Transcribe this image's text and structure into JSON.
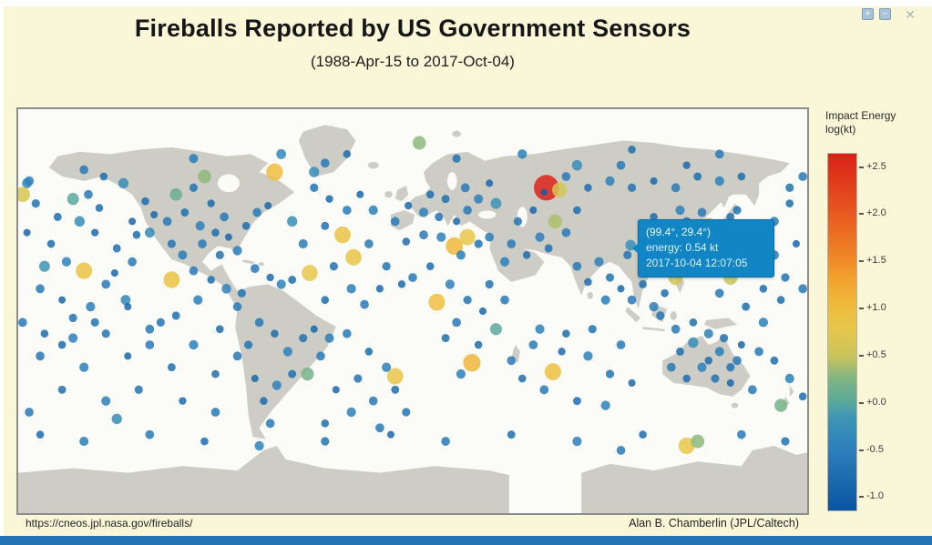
{
  "window": {
    "maximize_glyph": "+",
    "minimize_glyph": "−",
    "close_glyph": "✕"
  },
  "header": {
    "title": "Fireballs Reported by US Government Sensors",
    "subtitle": "(1988-Apr-15 to 2017-Oct-04)"
  },
  "tooltip": {
    "coords": "(99.4°, 29.4°)",
    "energy": "energy: 0.54 kt",
    "datetime": "2017-10-04 12:07:05"
  },
  "legend": {
    "title_line1": "Impact Energy",
    "title_line2": "log(kt)",
    "bar_top_value": 2.65,
    "bar_bottom_value": -1.15,
    "ticks": [
      {
        "label": "+2.5",
        "value": 2.5
      },
      {
        "label": "+2.0",
        "value": 2.0
      },
      {
        "label": "+1.5",
        "value": 1.5
      },
      {
        "label": "+1.0",
        "value": 1.0
      },
      {
        "label": "+0.5",
        "value": 0.5
      },
      {
        "label": "+0.0",
        "value": 0.0
      },
      {
        "label": "-0.5",
        "value": -0.5
      },
      {
        "label": "-1.0",
        "value": -1.0
      }
    ],
    "color_stops": [
      [
        -1.15,
        "#0a55a2"
      ],
      [
        -0.5,
        "#2c80bb"
      ],
      [
        -0.15,
        "#3e97b4"
      ],
      [
        0.0,
        "#59a89b"
      ],
      [
        0.25,
        "#7fb583"
      ],
      [
        0.5,
        "#c9c45a"
      ],
      [
        0.8,
        "#e7c64a"
      ],
      [
        1.0,
        "#eebd3e"
      ],
      [
        1.3,
        "#f2a430"
      ],
      [
        1.5,
        "#f08c27"
      ],
      [
        2.0,
        "#e85a20"
      ],
      [
        2.65,
        "#da2118"
      ]
    ]
  },
  "footer": {
    "url": "https://cneos.jpl.nasa.gov/fireballs/",
    "credit": "Alan B. Chamberlin (JPL/Caltech)"
  },
  "colors": {
    "panel": "#faf7d9",
    "bottom_bar": "#2173b3",
    "land": "#cecdc5",
    "ocean": "#fbfbf7",
    "tooltip_bg": "#1286c4"
  },
  "chart_data": {
    "type": "scatter",
    "title": "Fireballs Reported by US Government Sensors",
    "subtitle": "(1988-Apr-15 to 2017-Oct-04)",
    "projection": "equirectangular",
    "x": "longitude (deg)",
    "y": "latitude (deg)",
    "lon_range": [
      -180,
      180
    ],
    "lat_range": [
      -90,
      90
    ],
    "value_field": "log10 impact energy (kt)",
    "value_range": [
      -1.0,
      2.5
    ],
    "legend_position": "right colorbar",
    "highlighted_point": {
      "lon": 99.4,
      "lat": 29.4,
      "energy_kt": 0.54,
      "datetime": "2017-10-04 12:07:05"
    },
    "max_point": {
      "lon": 61,
      "lat": 55,
      "log_kt": 2.64,
      "note": "largest (red) fireball"
    },
    "points": [
      [
        -172,
        48,
        -0.7
      ],
      [
        -165,
        30,
        -0.8
      ],
      [
        -158,
        22,
        -0.5
      ],
      [
        -150,
        18,
        0.9
      ],
      [
        -170,
        10,
        -0.6
      ],
      [
        -160,
        5,
        -0.9
      ],
      [
        -152,
        40,
        -0.3
      ],
      [
        -145,
        35,
        -0.85
      ],
      [
        -140,
        12,
        -0.6
      ],
      [
        -135,
        28,
        -0.75
      ],
      [
        -131,
        5,
        -0.4
      ],
      [
        -148,
        52,
        -0.6
      ],
      [
        -176,
        35,
        -0.9
      ],
      [
        -168,
        20,
        -0.2
      ],
      [
        -162,
        42,
        -0.75
      ],
      [
        -155,
        50,
        0.0
      ],
      [
        -143,
        46,
        -0.8
      ],
      [
        -136,
        17,
        -0.9
      ],
      [
        -128,
        22,
        -0.6
      ],
      [
        -126,
        34,
        -0.8
      ],
      [
        -176,
        57,
        -0.4
      ],
      [
        -155,
        -3,
        -0.7
      ],
      [
        -147,
        2,
        -0.5
      ],
      [
        -110,
        14,
        0.9
      ],
      [
        -175,
        58,
        -0.5
      ],
      [
        -178,
        52,
        0.6
      ],
      [
        172,
        55,
        -0.7
      ],
      [
        178,
        60,
        -0.6
      ],
      [
        -150,
        63,
        -0.6
      ],
      [
        -141,
        60,
        -0.8
      ],
      [
        -132,
        57,
        -0.3
      ],
      [
        -122,
        49,
        -0.8
      ],
      [
        -118,
        43,
        -0.9
      ],
      [
        -112,
        40,
        -0.6
      ],
      [
        -104,
        44,
        -0.75
      ],
      [
        -97,
        38,
        -0.5
      ],
      [
        -90,
        35,
        -0.8
      ],
      [
        -84,
        33,
        -0.9
      ],
      [
        -96,
        30,
        -0.6
      ],
      [
        -88,
        25,
        -0.7
      ],
      [
        -80,
        27,
        -0.5
      ],
      [
        -76,
        38,
        -0.8
      ],
      [
        -71,
        44,
        -0.6
      ],
      [
        -66,
        47,
        -0.9
      ],
      [
        -63,
        62,
        1.0
      ],
      [
        -100,
        55,
        -0.7
      ],
      [
        -108,
        52,
        0.1
      ],
      [
        -92,
        48,
        -0.85
      ],
      [
        -86,
        42,
        -0.6
      ],
      [
        -120,
        35,
        -0.4
      ],
      [
        -128,
        40,
        -0.9
      ],
      [
        -110,
        30,
        -0.7
      ],
      [
        -105,
        25,
        -0.55
      ],
      [
        -95,
        60,
        0.3
      ],
      [
        -45,
        62,
        -0.3
      ],
      [
        -100,
        18,
        -0.6
      ],
      [
        -92,
        14,
        -0.8
      ],
      [
        -85,
        10,
        -0.45
      ],
      [
        -78,
        8,
        -0.7
      ],
      [
        -72,
        19,
        -0.6
      ],
      [
        -65,
        15,
        -0.85
      ],
      [
        -60,
        12,
        -0.5
      ],
      [
        -55,
        14,
        -0.75
      ],
      [
        -70,
        -5,
        -0.6
      ],
      [
        -63,
        -10,
        -0.8
      ],
      [
        -57,
        -18,
        -0.5
      ],
      [
        -50,
        -12,
        -0.7
      ],
      [
        -45,
        -8,
        -0.9
      ],
      [
        -42,
        -20,
        -0.6
      ],
      [
        -55,
        -28,
        -0.75
      ],
      [
        -62,
        -33,
        -0.5
      ],
      [
        -68,
        -40,
        -0.8
      ],
      [
        -65,
        -50,
        -0.6
      ],
      [
        -72,
        -30,
        -0.9
      ],
      [
        -48,
        -28,
        0.2
      ],
      [
        -38,
        -12,
        -0.55
      ],
      [
        -75,
        -15,
        -0.7
      ],
      [
        -45,
        55,
        -0.7
      ],
      [
        -38,
        50,
        -0.85
      ],
      [
        -30,
        45,
        -0.6
      ],
      [
        -24,
        52,
        -0.9
      ],
      [
        -18,
        45,
        -0.5
      ],
      [
        -40,
        38,
        -0.75
      ],
      [
        -32,
        34,
        0.9
      ],
      [
        -27,
        24,
        0.85
      ],
      [
        -20,
        30,
        -0.6
      ],
      [
        -47,
        17,
        0.8
      ],
      [
        -36,
        20,
        -0.7
      ],
      [
        -28,
        10,
        -0.5
      ],
      [
        -40,
        5,
        -0.8
      ],
      [
        -22,
        3,
        -0.6
      ],
      [
        -15,
        10,
        -0.85
      ],
      [
        -50,
        30,
        -0.55
      ],
      [
        -55,
        40,
        -0.3
      ],
      [
        -12,
        20,
        -0.7
      ],
      [
        -30,
        -10,
        -0.6
      ],
      [
        -20,
        -18,
        -0.8
      ],
      [
        -12,
        -25,
        -0.5
      ],
      [
        -25,
        -30,
        -0.7
      ],
      [
        -35,
        -35,
        -0.9
      ],
      [
        -18,
        -40,
        -0.6
      ],
      [
        -8,
        -35,
        -0.75
      ],
      [
        -8,
        -29,
        0.85
      ],
      [
        -28,
        -45,
        -0.5
      ],
      [
        -40,
        -50,
        -0.8
      ],
      [
        -15,
        -52,
        -0.6
      ],
      [
        -3,
        -45,
        -0.7
      ],
      [
        -8,
        40,
        -0.6
      ],
      [
        -2,
        47,
        -0.85
      ],
      [
        5,
        44,
        -0.5
      ],
      [
        12,
        42,
        -0.7
      ],
      [
        20,
        40,
        -0.9
      ],
      [
        25,
        45,
        -0.6
      ],
      [
        15,
        50,
        -0.75
      ],
      [
        30,
        50,
        -0.5
      ],
      [
        38,
        48,
        -0.2
      ],
      [
        8,
        52,
        -0.8
      ],
      [
        24,
        55,
        -0.6
      ],
      [
        35,
        57,
        -0.9
      ],
      [
        3,
        75,
        0.3
      ],
      [
        19,
        29,
        1.05
      ],
      [
        25,
        33,
        0.8
      ],
      [
        5,
        34,
        -0.6
      ],
      [
        -3,
        31,
        -0.8
      ],
      [
        13,
        33,
        -0.5
      ],
      [
        30,
        30,
        -0.7
      ],
      [
        22,
        25,
        -0.55
      ],
      [
        35,
        33,
        -0.6
      ],
      [
        11,
        4,
        0.95
      ],
      [
        0,
        15,
        -0.6
      ],
      [
        8,
        20,
        -0.8
      ],
      [
        17,
        12,
        -0.5
      ],
      [
        25,
        5,
        -0.7
      ],
      [
        32,
        0,
        -0.9
      ],
      [
        20,
        -5,
        -0.6
      ],
      [
        15,
        -12,
        -0.75
      ],
      [
        27,
        -23,
        1.1
      ],
      [
        22,
        -28,
        -0.5
      ],
      [
        30,
        -15,
        -0.8
      ],
      [
        38,
        -8,
        0.0
      ],
      [
        42,
        5,
        -0.6
      ],
      [
        35,
        12,
        -0.7
      ],
      [
        -5,
        12,
        -0.85
      ],
      [
        45,
        -22,
        -0.6
      ],
      [
        45,
        30,
        -0.6
      ],
      [
        52,
        25,
        -0.8
      ],
      [
        58,
        33,
        -0.5
      ],
      [
        48,
        40,
        -0.7
      ],
      [
        55,
        45,
        -0.9
      ],
      [
        65,
        40,
        0.4
      ],
      [
        70,
        35,
        -0.6
      ],
      [
        62,
        28,
        -0.75
      ],
      [
        42,
        22,
        -0.5
      ],
      [
        75,
        45,
        -0.8
      ],
      [
        61,
        55,
        2.64
      ],
      [
        67,
        54,
        0.6
      ],
      [
        60,
        53,
        -1.05
      ],
      [
        70,
        60,
        -0.6
      ],
      [
        80,
        55,
        -0.8
      ],
      [
        90,
        58,
        -0.5
      ],
      [
        100,
        55,
        -0.7
      ],
      [
        110,
        58,
        -0.9
      ],
      [
        120,
        55,
        -0.6
      ],
      [
        130,
        60,
        -0.75
      ],
      [
        140,
        58,
        -0.5
      ],
      [
        150,
        60,
        -0.8
      ],
      [
        95,
        65,
        -0.6
      ],
      [
        75,
        65,
        -0.3
      ],
      [
        125,
        65,
        -0.85
      ],
      [
        75,
        20,
        -0.6
      ],
      [
        80,
        13,
        -0.8
      ],
      [
        85,
        22,
        -0.5
      ],
      [
        90,
        15,
        -0.7
      ],
      [
        95,
        10,
        -0.9
      ],
      [
        100,
        5,
        -0.6
      ],
      [
        105,
        12,
        -0.75
      ],
      [
        110,
        2,
        -0.5
      ],
      [
        115,
        8,
        -0.8
      ],
      [
        120,
        15,
        0.6
      ],
      [
        108,
        20,
        -0.6
      ],
      [
        98,
        25,
        -0.7
      ],
      [
        88,
        5,
        -0.55
      ],
      [
        113,
        -2,
        -0.65
      ],
      [
        99.4,
        29.4,
        -0.27
      ],
      [
        105,
        35,
        -0.6
      ],
      [
        112,
        30,
        -0.8
      ],
      [
        118,
        35,
        -0.5
      ],
      [
        125,
        40,
        -0.7
      ],
      [
        130,
        35,
        0.9
      ],
      [
        135,
        38,
        0.75
      ],
      [
        140,
        36,
        -0.6
      ],
      [
        145,
        42,
        -0.75
      ],
      [
        122,
        45,
        -0.5
      ],
      [
        110,
        42,
        -0.8
      ],
      [
        132,
        44,
        -0.6
      ],
      [
        150,
        30,
        -0.6
      ],
      [
        155,
        20,
        0.8
      ],
      [
        160,
        10,
        -0.8
      ],
      [
        165,
        25,
        -0.5
      ],
      [
        170,
        15,
        -0.7
      ],
      [
        175,
        30,
        -0.9
      ],
      [
        145,
        15,
        0.5
      ],
      [
        140,
        8,
        -0.6
      ],
      [
        152,
        2,
        -0.75
      ],
      [
        160,
        -5,
        -0.5
      ],
      [
        168,
        5,
        -0.8
      ],
      [
        178,
        10,
        -0.6
      ],
      [
        158,
        35,
        -0.4
      ],
      [
        148,
        45,
        -0.7
      ],
      [
        165,
        40,
        -0.55
      ],
      [
        172,
        48,
        -0.8
      ],
      [
        120,
        -8,
        -0.6
      ],
      [
        128,
        -5,
        -0.8
      ],
      [
        135,
        -10,
        -0.5
      ],
      [
        142,
        -12,
        -0.7
      ],
      [
        150,
        -15,
        -0.9
      ],
      [
        158,
        -18,
        -0.6
      ],
      [
        165,
        -22,
        -0.75
      ],
      [
        172,
        -30,
        -0.5
      ],
      [
        178,
        -38,
        -0.8
      ],
      [
        168,
        -42,
        0.2
      ],
      [
        155,
        -35,
        -0.6
      ],
      [
        145,
        -25,
        -0.7
      ],
      [
        118,
        -25,
        -0.6
      ],
      [
        125,
        -30,
        -0.8
      ],
      [
        132,
        -25,
        -0.5
      ],
      [
        138,
        -30,
        -0.7
      ],
      [
        145,
        -32,
        -0.9
      ],
      [
        148,
        -22,
        -0.6
      ],
      [
        122,
        -18,
        -0.75
      ],
      [
        128,
        -14,
        -0.3
      ],
      [
        140,
        -18,
        -0.55
      ],
      [
        135,
        -22,
        -0.8
      ],
      [
        64,
        -27,
        0.95
      ],
      [
        55,
        -15,
        -0.6
      ],
      [
        70,
        -10,
        -0.8
      ],
      [
        80,
        -20,
        -0.5
      ],
      [
        90,
        -28,
        -0.7
      ],
      [
        100,
        -32,
        -0.9
      ],
      [
        60,
        -35,
        -0.6
      ],
      [
        75,
        -40,
        -0.75
      ],
      [
        88,
        -42,
        -0.5
      ],
      [
        50,
        -30,
        -0.8
      ],
      [
        95,
        -15,
        -0.6
      ],
      [
        82,
        -8,
        -0.7
      ],
      [
        68,
        -18,
        -0.85
      ],
      [
        58,
        -8,
        -0.5
      ],
      [
        -120,
        -55,
        -0.6
      ],
      [
        -95,
        -58,
        -0.8
      ],
      [
        -70,
        -60,
        -0.5
      ],
      [
        -40,
        -58,
        -0.7
      ],
      [
        -10,
        -55,
        -0.9
      ],
      [
        15,
        -58,
        -0.6
      ],
      [
        45,
        -55,
        -0.75
      ],
      [
        75,
        -58,
        -0.5
      ],
      [
        105,
        -55,
        -0.8
      ],
      [
        125,
        -60,
        0.85
      ],
      [
        130,
        -58,
        0.3
      ],
      [
        150,
        -55,
        -0.6
      ],
      [
        170,
        -58,
        -0.7
      ],
      [
        -150,
        -58,
        -0.55
      ],
      [
        -170,
        -55,
        -0.8
      ],
      [
        95,
        -62,
        -0.6
      ],
      [
        -170,
        -20,
        -0.6
      ],
      [
        -160,
        -15,
        -0.8
      ],
      [
        -150,
        -25,
        -0.5
      ],
      [
        -140,
        -10,
        -0.7
      ],
      [
        -130,
        -20,
        -0.9
      ],
      [
        -120,
        -15,
        -0.6
      ],
      [
        -110,
        -25,
        -0.75
      ],
      [
        -100,
        -15,
        -0.5
      ],
      [
        -90,
        -28,
        -0.8
      ],
      [
        -80,
        -20,
        -0.6
      ],
      [
        -125,
        -35,
        -0.7
      ],
      [
        -105,
        -40,
        -0.85
      ],
      [
        -90,
        -45,
        -0.6
      ],
      [
        -140,
        -40,
        -0.5
      ],
      [
        -160,
        -35,
        -0.75
      ],
      [
        -175,
        -45,
        -0.6
      ],
      [
        -115,
        -5,
        -0.7
      ],
      [
        -135,
        -48,
        -0.3
      ],
      [
        -178,
        -5,
        -0.6
      ],
      [
        -168,
        -10,
        -0.8
      ],
      [
        -155,
        -12,
        -0.5
      ],
      [
        -145,
        -5,
        -0.7
      ],
      [
        -130,
        2,
        -0.9
      ],
      [
        -120,
        -8,
        -0.6
      ],
      [
        -108,
        -2,
        -0.75
      ],
      [
        -98,
        5,
        -0.5
      ],
      [
        -88,
        -8,
        -0.8
      ],
      [
        -80,
        2,
        -0.6
      ],
      [
        -40,
        66,
        -0.6
      ],
      [
        -30,
        70,
        -0.8
      ],
      [
        -60,
        70,
        -0.4
      ],
      [
        20,
        68,
        -0.7
      ],
      [
        50,
        70,
        -0.5
      ],
      [
        100,
        72,
        -0.8
      ],
      [
        140,
        70,
        -0.6
      ],
      [
        -100,
        68,
        -0.55
      ]
    ]
  }
}
